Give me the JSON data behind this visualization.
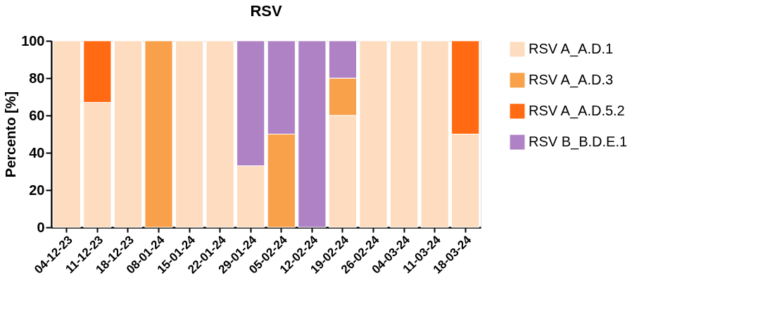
{
  "chart_data": {
    "type": "bar",
    "title": "RSV",
    "ylabel": "Percento [%]",
    "stacked": true,
    "categories": [
      "04-12-23",
      "11-12-23",
      "18-12-23",
      "08-01-24",
      "15-01-24",
      "22-01-24",
      "29-01-24",
      "05-02-24",
      "12-02-24",
      "19-02-24",
      "26-02-24",
      "04-03-24",
      "11-03-24",
      "18-03-24"
    ],
    "series": [
      {
        "name": "RSV A_A.D.1",
        "color": "#fddcbf",
        "values": [
          100,
          67,
          100,
          0,
          100,
          100,
          33,
          0,
          0,
          60,
          100,
          100,
          100,
          50
        ]
      },
      {
        "name": "RSV A_A.D.3",
        "color": "#f9a04b",
        "values": [
          0,
          0,
          0,
          100,
          0,
          0,
          0,
          50,
          0,
          20,
          0,
          0,
          0,
          0
        ]
      },
      {
        "name": "RSV A_A.D.5.2",
        "color": "#ff6a13",
        "values": [
          0,
          33,
          0,
          0,
          0,
          0,
          0,
          0,
          0,
          0,
          0,
          0,
          0,
          50
        ]
      },
      {
        "name": "RSV B_B.D.E.1",
        "color": "#ae82c4",
        "values": [
          0,
          0,
          0,
          0,
          0,
          0,
          67,
          50,
          100,
          20,
          0,
          0,
          0,
          0
        ]
      }
    ],
    "ylim": [
      0,
      100
    ],
    "yticks": [
      0,
      20,
      40,
      60,
      80,
      100
    ],
    "grid": false,
    "legend": "right"
  }
}
